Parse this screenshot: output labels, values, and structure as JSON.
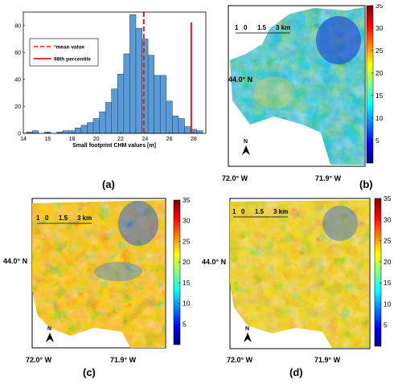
{
  "chart_data": [
    {
      "panel": "(a)",
      "type": "bar",
      "title": "",
      "xlabel": "Small footprint CHM values [m]",
      "ylabel": "",
      "xlim": [
        14,
        29
      ],
      "ylim": [
        0,
        90
      ],
      "xticks": [
        "14",
        "16",
        "18",
        "20",
        "22",
        "24",
        "26",
        "28"
      ],
      "yticks": [
        "0",
        "20",
        "40",
        "60",
        "80"
      ],
      "bin_width": 0.5,
      "bins": [
        {
          "x": 14.5,
          "count": 1
        },
        {
          "x": 15.0,
          "count": 2
        },
        {
          "x": 16.0,
          "count": 1
        },
        {
          "x": 17.0,
          "count": 1
        },
        {
          "x": 17.5,
          "count": 2
        },
        {
          "x": 18.0,
          "count": 2
        },
        {
          "x": 18.5,
          "count": 4
        },
        {
          "x": 19.0,
          "count": 6
        },
        {
          "x": 19.5,
          "count": 8
        },
        {
          "x": 20.0,
          "count": 11
        },
        {
          "x": 20.5,
          "count": 16
        },
        {
          "x": 21.0,
          "count": 23
        },
        {
          "x": 21.5,
          "count": 33
        },
        {
          "x": 22.0,
          "count": 44
        },
        {
          "x": 22.5,
          "count": 59
        },
        {
          "x": 23.0,
          "count": 88
        },
        {
          "x": 23.5,
          "count": 78
        },
        {
          "x": 24.0,
          "count": 70
        },
        {
          "x": 24.5,
          "count": 58
        },
        {
          "x": 25.0,
          "count": 43
        },
        {
          "x": 25.5,
          "count": 43
        },
        {
          "x": 26.0,
          "count": 24
        },
        {
          "x": 26.5,
          "count": 13
        },
        {
          "x": 27.0,
          "count": 11
        },
        {
          "x": 27.5,
          "count": 5
        },
        {
          "x": 28.0,
          "count": 3
        },
        {
          "x": 28.5,
          "count": 2
        }
      ],
      "mean_value": 23.9,
      "percentile_98": 27.8,
      "legend": [
        "mean value",
        "98th percentile"
      ],
      "colors": {
        "bars": "#5b9bd5",
        "bar_edge": "#1f3f66",
        "lines": "#e41a1c"
      }
    },
    {
      "panel": "(b)",
      "type": "heatmap",
      "colorbar_ticks": [
        "5",
        "10",
        "15",
        "20",
        "25",
        "30",
        "35"
      ],
      "colorbar_range": [
        0,
        35
      ],
      "scalebar": [
        "1",
        "0",
        "1.5",
        "3 km"
      ],
      "lat_label": "44.0° N",
      "lon_labels": [
        "72.0° W",
        "71.9° W"
      ],
      "north": "N"
    },
    {
      "panel": "(c)",
      "type": "heatmap",
      "colorbar_ticks": [
        "5",
        "10",
        "15",
        "20",
        "25",
        "30",
        "35"
      ],
      "colorbar_range": [
        0,
        35
      ],
      "scalebar": [
        "1",
        "0",
        "1.5",
        "3 km"
      ],
      "lat_label": "44.0° N",
      "lon_labels": [
        "72.0° W",
        "71.9° W"
      ],
      "north": "N"
    },
    {
      "panel": "(d)",
      "type": "heatmap",
      "colorbar_ticks": [
        "5",
        "10",
        "15",
        "20",
        "25",
        "30",
        "35"
      ],
      "colorbar_range": [
        0,
        35
      ],
      "scalebar": [
        "1",
        "0",
        "1.5",
        "3 km"
      ],
      "lat_label": "44.0° N",
      "lon_labels": [
        "72.0° W",
        "71.9° W"
      ],
      "north": "N"
    }
  ],
  "captions": {
    "a": "(a)",
    "b": "(b)",
    "c": "(c)",
    "d": "(d)"
  },
  "colormap": "jet"
}
